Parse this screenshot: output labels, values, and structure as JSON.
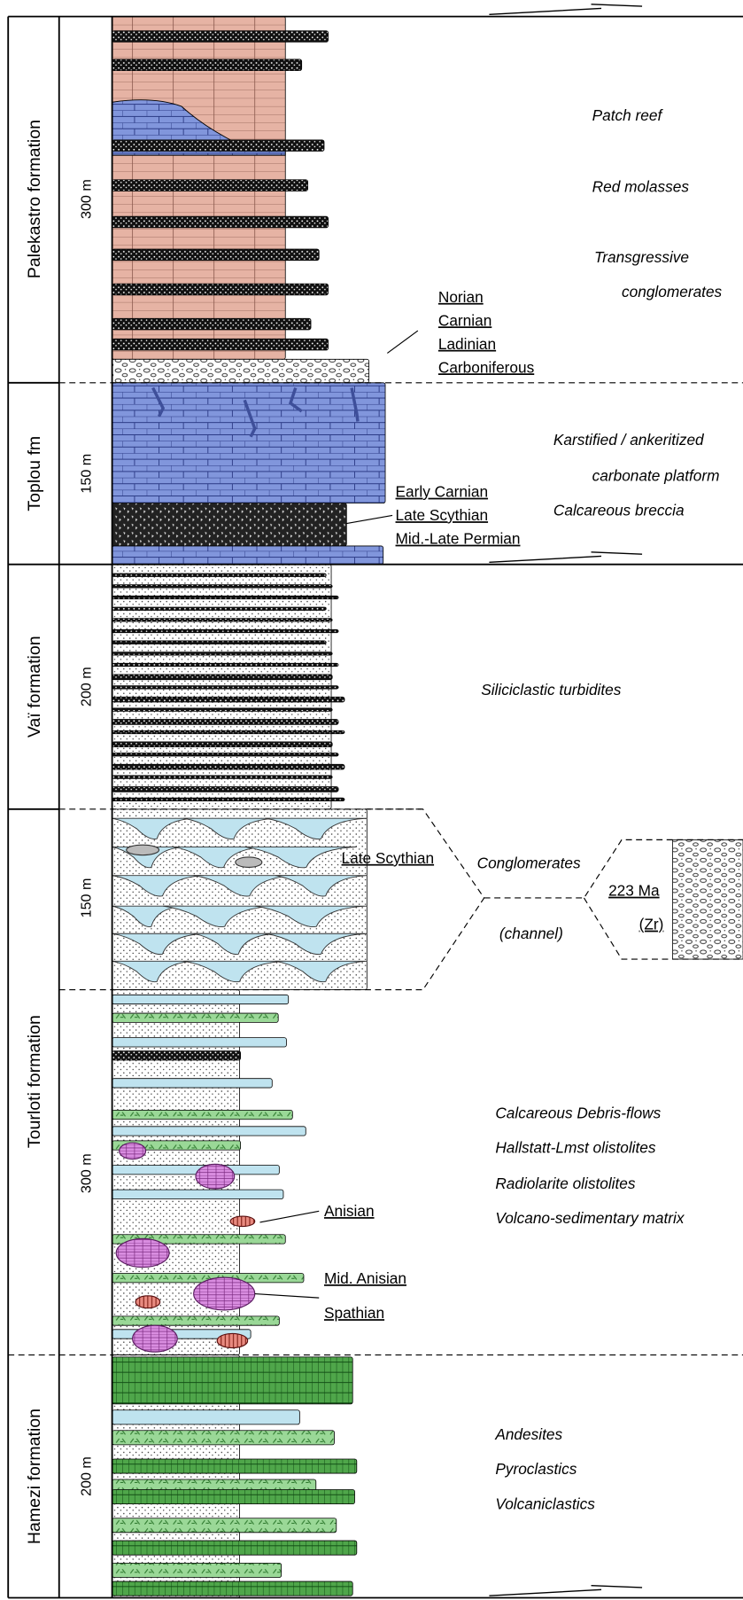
{
  "formations": [
    {
      "name": "Palekastro formation",
      "thickness": [
        "300 m"
      ]
    },
    {
      "name": "Toplou fm",
      "thickness": [
        "150 m"
      ]
    },
    {
      "name": "Vaï formation",
      "thickness": [
        "200 m"
      ]
    },
    {
      "name": "Tourloti formation",
      "thickness": [
        "150 m",
        "300 m"
      ]
    },
    {
      "name": "Hamezi formation",
      "thickness": [
        "200 m"
      ]
    }
  ],
  "ages": [
    [
      "Norian",
      "Carnian",
      "Ladinian",
      "Carboniferous"
    ],
    [
      "Early Carnian",
      "Late Scythian",
      "Mid.-Late Permian"
    ],
    [
      "Late Scythian"
    ],
    [
      "223 Ma",
      "(Zr)"
    ],
    [
      "Anisian"
    ],
    [
      "Mid. Anisian"
    ],
    [
      "Spathian"
    ]
  ],
  "descriptions": [
    [
      "Patch reef",
      "Red molasses",
      "Transgressive",
      "conglomerates"
    ],
    [
      "Karstified / ankeritized",
      "carbonate platform",
      "Calcareous breccia"
    ],
    [
      "Siliciclastic turbidites"
    ],
    [
      "Conglomerates",
      "(channel)"
    ],
    [
      "Calcareous Debris-flows",
      "Hallstatt-Lmst olistolites",
      "Radiolarite olistolites",
      "Volcano-sedimentary matrix"
    ],
    [
      "Andesites",
      "Pyroclastics",
      "Volcaniclastics"
    ]
  ]
}
